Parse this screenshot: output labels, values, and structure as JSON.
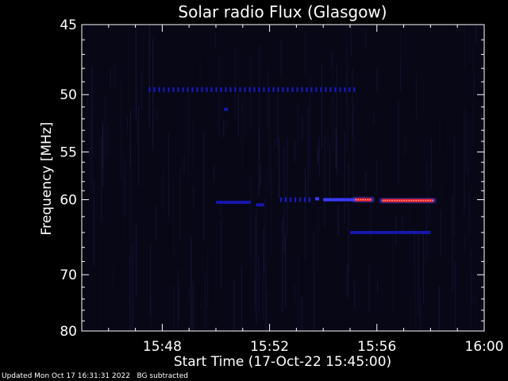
{
  "chart_data": {
    "type": "heatmap",
    "title": "Solar radio Flux (Glasgow)",
    "xlabel": "Start Time (17-Oct-22 15:45:00)",
    "ylabel": "Frequency [MHz]",
    "x_range_minutes": [
      0,
      15
    ],
    "x_tick_labels": [
      "15:48",
      "15:52",
      "15:56",
      "16:00"
    ],
    "x_tick_values": [
      3,
      7,
      11,
      15
    ],
    "y_range_mhz": [
      45,
      80
    ],
    "y_tick_labels": [
      "45",
      "50",
      "55",
      "60",
      "70",
      "80"
    ],
    "y_tick_values": [
      45,
      50,
      55,
      60,
      70,
      80
    ],
    "y_scale": "reciprocal",
    "colors": {
      "background": "#070716",
      "low": "#1a1ad0",
      "mid": "#3a3aff",
      "high": "#ff2020",
      "peak": "#ffd0d0"
    },
    "emission_features": [
      {
        "freq_mhz": 49.6,
        "t_start_min": 2.5,
        "t_end_min": 10.3,
        "intensity": "low",
        "pattern": "dashed"
      },
      {
        "freq_mhz": 51.2,
        "t_start_min": 5.3,
        "t_end_min": 5.45,
        "intensity": "low",
        "pattern": "solid"
      },
      {
        "freq_mhz": 60.3,
        "t_start_min": 5.0,
        "t_end_min": 6.3,
        "intensity": "low",
        "pattern": "solid"
      },
      {
        "freq_mhz": 60.6,
        "t_start_min": 6.5,
        "t_end_min": 6.8,
        "intensity": "low",
        "pattern": "solid"
      },
      {
        "freq_mhz": 60.0,
        "t_start_min": 7.4,
        "t_end_min": 8.6,
        "intensity": "low",
        "pattern": "dashed"
      },
      {
        "freq_mhz": 59.9,
        "t_start_min": 8.7,
        "t_end_min": 8.85,
        "intensity": "mid",
        "pattern": "solid"
      },
      {
        "freq_mhz": 60.0,
        "t_start_min": 9.0,
        "t_end_min": 9.8,
        "intensity": "mid",
        "pattern": "solid"
      },
      {
        "freq_mhz": 60.0,
        "t_start_min": 9.8,
        "t_end_min": 10.2,
        "intensity": "mid",
        "pattern": "solid"
      },
      {
        "freq_mhz": 60.0,
        "t_start_min": 10.2,
        "t_end_min": 10.8,
        "intensity": "high",
        "pattern": "solid"
      },
      {
        "freq_mhz": 60.1,
        "t_start_min": 11.2,
        "t_end_min": 13.1,
        "intensity": "high",
        "pattern": "solid"
      },
      {
        "freq_mhz": 64.0,
        "t_start_min": 10.0,
        "t_end_min": 13.0,
        "intensity": "low",
        "pattern": "solid"
      }
    ]
  },
  "footer": {
    "updated": "Updated Mon Oct 17 16:31:31 2022",
    "bg_note": "BG subtracted"
  }
}
